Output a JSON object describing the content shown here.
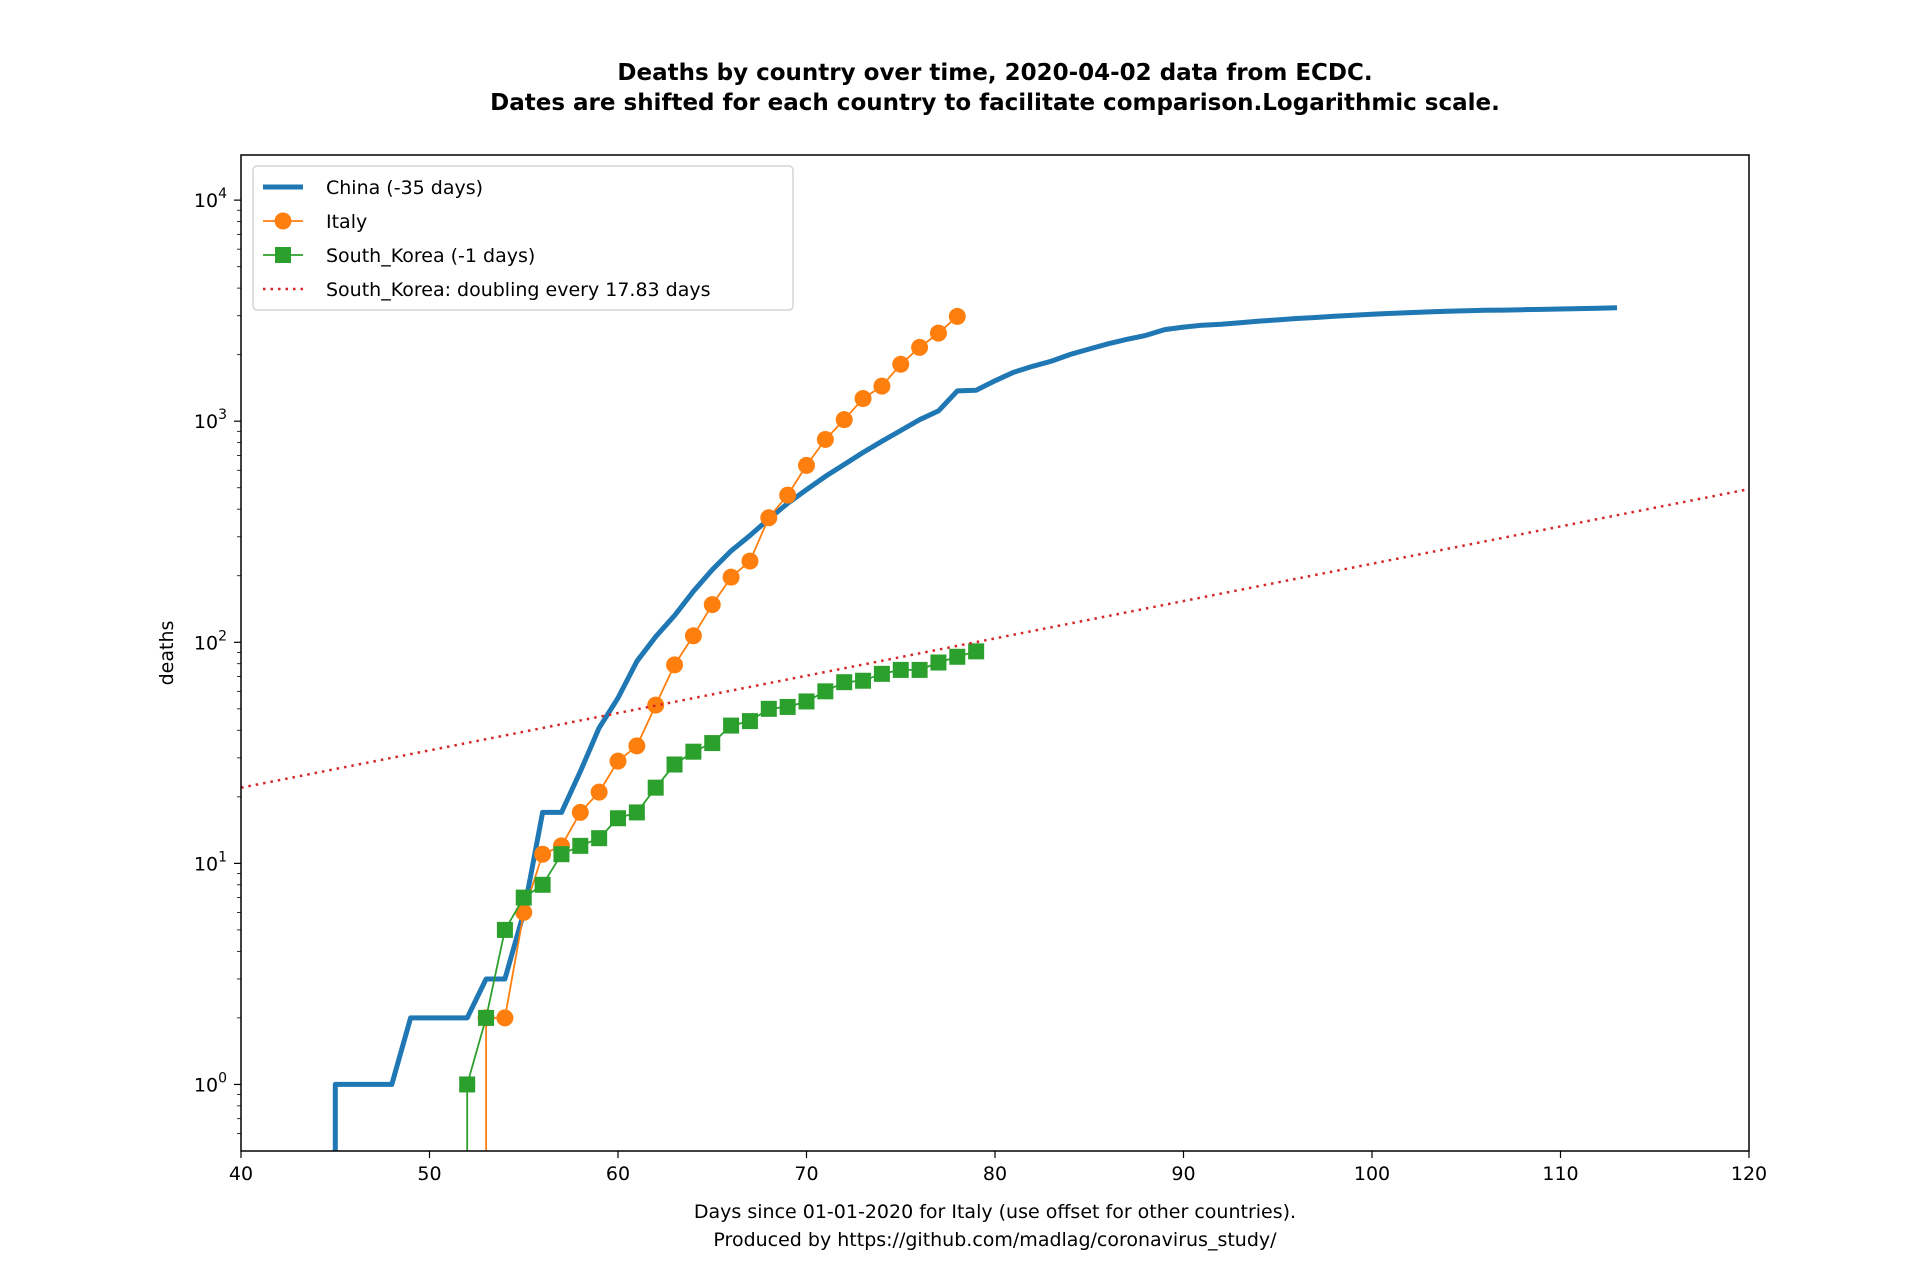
{
  "chart_data": {
    "type": "line",
    "title": [
      "Deaths by country over time, 2020-04-02 data from ECDC.",
      "Dates are shifted for each country to facilitate comparison.Logarithmic scale."
    ],
    "xlabel": [
      "Days since 01-01-2020 for Italy (use offset for other countries).",
      "Produced by https://github.com/madlag/coronavirus_study/"
    ],
    "ylabel": "deaths",
    "xlim": [
      40,
      120
    ],
    "ylim": [
      0.5,
      16000
    ],
    "yscale": "log",
    "grid": false,
    "legend_position": "top-left",
    "x_ticks": [
      40,
      50,
      60,
      70,
      80,
      90,
      100,
      110,
      120
    ],
    "y_ticks": [
      {
        "value": 1,
        "base": "10",
        "exp": "0"
      },
      {
        "value": 10,
        "base": "10",
        "exp": "1"
      },
      {
        "value": 100,
        "base": "10",
        "exp": "2"
      },
      {
        "value": 1000,
        "base": "10",
        "exp": "3"
      },
      {
        "value": 10000,
        "base": "10",
        "exp": "4"
      }
    ],
    "series": [
      {
        "name": "China (-35 days)",
        "color": "#1f77b4",
        "style": "thick-line",
        "x": [
          45,
          45,
          46,
          47,
          48,
          49,
          50,
          51,
          52,
          53,
          54,
          55,
          56,
          57,
          58,
          59,
          60,
          61,
          62,
          63,
          64,
          65,
          66,
          67,
          68,
          69,
          70,
          71,
          72,
          73,
          74,
          75,
          76,
          77,
          78,
          79,
          80,
          81,
          82,
          83,
          84,
          85,
          86,
          87,
          88,
          89,
          90,
          91,
          92,
          93,
          94,
          95,
          96,
          97,
          98,
          99,
          100,
          101,
          102,
          103,
          104,
          105,
          106,
          107,
          108,
          109,
          110,
          111,
          112,
          113
        ],
        "y": [
          0.3,
          1,
          1,
          1,
          1,
          2,
          2,
          2,
          2,
          3,
          3,
          6,
          17,
          17,
          26,
          41,
          56,
          82,
          106,
          132,
          170,
          213,
          259,
          304,
          361,
          425,
          490,
          563,
          637,
          722,
          811,
          908,
          1016,
          1113,
          1371,
          1381,
          1524,
          1666,
          1772,
          1870,
          2006,
          2121,
          2239,
          2348,
          2444,
          2595,
          2665,
          2718,
          2747,
          2791,
          2838,
          2873,
          2915,
          2946,
          2984,
          3015,
          3045,
          3073,
          3100,
          3123,
          3140,
          3162,
          3173,
          3180,
          3193,
          3203,
          3217,
          3230,
          3245,
          3260
        ]
      },
      {
        "name": "Italy",
        "color": "#ff7f0e",
        "style": "line-circle",
        "x": [
          53,
          53,
          54,
          55,
          56,
          57,
          58,
          59,
          60,
          61,
          62,
          63,
          64,
          65,
          66,
          67,
          68,
          69,
          70,
          71,
          72,
          73,
          74,
          75,
          76,
          77,
          78
        ],
        "y": [
          0.3,
          2,
          2,
          6,
          11,
          12,
          17,
          21,
          29,
          34,
          52,
          79,
          107,
          148,
          197,
          233,
          366,
          463,
          631,
          827,
          1016,
          1266,
          1441,
          1809,
          2158,
          2503,
          2978
        ]
      },
      {
        "name": "South_Korea (-1 days)",
        "color": "#2ca02c",
        "style": "line-square",
        "x": [
          52,
          52,
          53,
          54,
          55,
          56,
          57,
          58,
          59,
          60,
          61,
          62,
          63,
          64,
          65,
          66,
          67,
          68,
          69,
          70,
          71,
          72,
          73,
          74,
          75,
          76,
          77,
          78,
          79
        ],
        "y": [
          0.3,
          1,
          2,
          5,
          7,
          8,
          11,
          12,
          13,
          16,
          17,
          22,
          28,
          32,
          35,
          42,
          44,
          50,
          51,
          54,
          60,
          66,
          67,
          72,
          75,
          75,
          81,
          86,
          91
        ]
      },
      {
        "name": "South_Korea: doubling every 17.83 days",
        "color": "#d62728",
        "style": "dotted",
        "x": [
          40,
          120
        ],
        "y": [
          22,
          493
        ]
      }
    ]
  }
}
